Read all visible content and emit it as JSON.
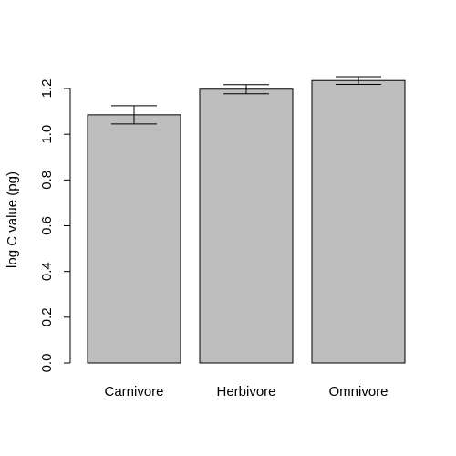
{
  "chart_data": {
    "type": "bar",
    "title": "",
    "xlabel": "",
    "ylabel": "log C value (pg)",
    "categories": [
      "Carnivore",
      "Herbivore",
      "Omnivore"
    ],
    "values": [
      1.085,
      1.197,
      1.235
    ],
    "error_low": [
      1.045,
      1.177,
      1.218
    ],
    "error_high": [
      1.125,
      1.217,
      1.252
    ],
    "ylim": [
      0,
      1.2
    ],
    "yticks": [
      0.0,
      0.2,
      0.4,
      0.6,
      0.8,
      1.0,
      1.2
    ],
    "ytick_labels": [
      "0.0",
      "0.2",
      "0.4",
      "0.6",
      "0.8",
      "1.0",
      "1.2"
    ],
    "grid": false,
    "bar_color": "#bebebe",
    "outline_color": "#000000"
  }
}
